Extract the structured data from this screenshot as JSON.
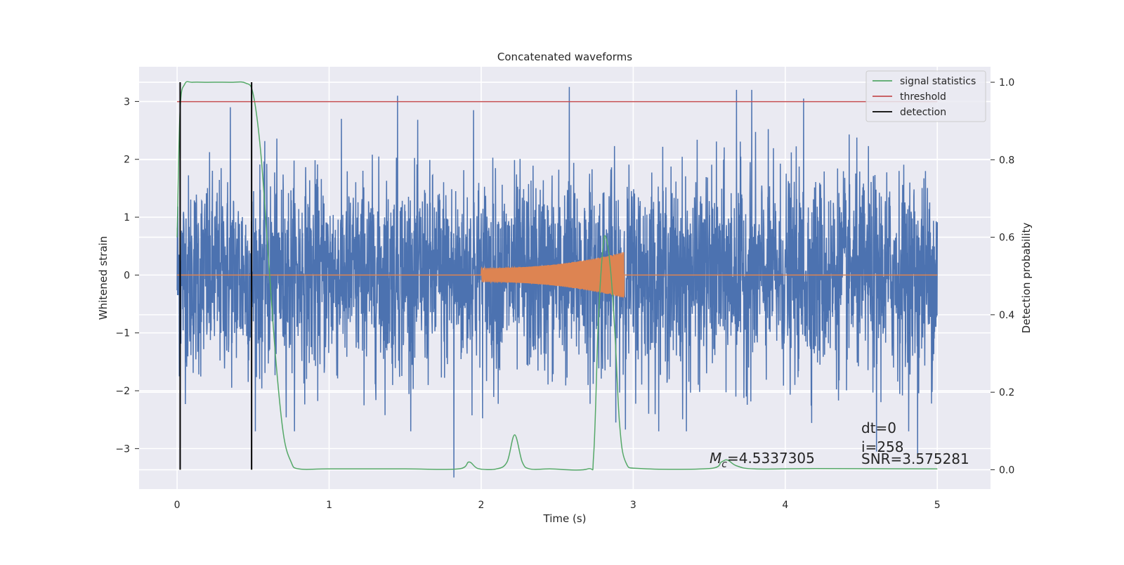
{
  "chart_data": {
    "type": "line",
    "title": "Concatenated waveforms",
    "xlabel": "Time (s)",
    "ylabel": "Whitened strain",
    "y2label": "Detection probability",
    "xlim": [
      -0.25,
      5.35
    ],
    "ylim": [
      -3.7,
      3.6
    ],
    "y2lim": [
      -0.05,
      1.04
    ],
    "xticks": [
      0,
      1,
      2,
      3,
      4,
      5
    ],
    "yticks": [
      -3,
      -2,
      -1,
      0,
      1,
      2,
      3
    ],
    "y2ticks": [
      0.0,
      0.2,
      0.4,
      0.6,
      0.8,
      1.0
    ],
    "grid": true,
    "legend_position": "top-right",
    "legend": [
      {
        "label": "signal statistics",
        "color": "#55a868"
      },
      {
        "label": "threshold",
        "color": "#c44e52"
      },
      {
        "label": "detection",
        "color": "#000000"
      }
    ],
    "series": [
      {
        "kind": "noise",
        "axis": "left",
        "color": "#4c72b0",
        "x_range": [
          0,
          5
        ],
        "envelope": 2.0,
        "spike_peaks": [
          {
            "x": 1.45,
            "y": 3.1
          },
          {
            "x": 1.82,
            "y": -3.5
          },
          {
            "x": 2.58,
            "y": 3.25
          },
          {
            "x": 3.68,
            "y": 3.2
          },
          {
            "x": 3.78,
            "y": 3.2
          },
          {
            "x": 4.12,
            "y": 3.05
          },
          {
            "x": 4.87,
            "y": -3.1
          },
          {
            "x": 0.35,
            "y": 2.9
          },
          {
            "x": 1.95,
            "y": 2.85
          },
          {
            "x": 3.35,
            "y": -2.7
          },
          {
            "x": 4.6,
            "y": -3.05
          }
        ]
      },
      {
        "kind": "chirp",
        "axis": "left",
        "color": "#dd8452",
        "x_range": [
          0,
          5
        ],
        "chirp_start": 2.0,
        "chirp_end": 2.94,
        "amplitude_start": 0.12,
        "amplitude_end": 0.4
      },
      {
        "name": "signal statistics",
        "axis": "right",
        "color": "#55a868",
        "x": [
          0,
          0.02,
          0.05,
          0.1,
          0.2,
          0.35,
          0.45,
          0.5,
          0.55,
          0.6,
          0.65,
          0.7,
          0.75,
          0.8,
          1.0,
          1.5,
          1.85,
          1.92,
          1.98,
          2.1,
          2.17,
          2.22,
          2.27,
          2.32,
          2.45,
          2.7,
          2.74,
          2.77,
          2.8,
          2.82,
          2.85,
          2.88,
          2.91,
          2.95,
          3.05,
          3.5,
          3.58,
          3.62,
          3.68,
          3.8,
          4.2,
          5.0
        ],
        "y": [
          0.6,
          0.93,
          0.995,
          1.0,
          1.0,
          1.0,
          0.998,
          0.97,
          0.82,
          0.55,
          0.28,
          0.09,
          0.02,
          0.002,
          0.002,
          0.002,
          0.002,
          0.02,
          0.003,
          0.002,
          0.02,
          0.09,
          0.02,
          0.002,
          0.002,
          0.002,
          0.04,
          0.38,
          0.57,
          0.6,
          0.52,
          0.35,
          0.12,
          0.02,
          0.003,
          0.003,
          0.02,
          0.025,
          0.01,
          0.002,
          0.003,
          0.002
        ]
      },
      {
        "name": "threshold",
        "axis": "right",
        "color": "#c44e52",
        "x": [
          0,
          5
        ],
        "y": [
          0.95,
          0.95
        ]
      }
    ],
    "detections": [
      0.02,
      0.49
    ],
    "annotations": {
      "mc_prefix": "M",
      "mc_sub": "c",
      "mc_value": "=4.5337305",
      "dt": "dt=0",
      "i": "i=258",
      "snr": "SNR=3.575281"
    }
  }
}
